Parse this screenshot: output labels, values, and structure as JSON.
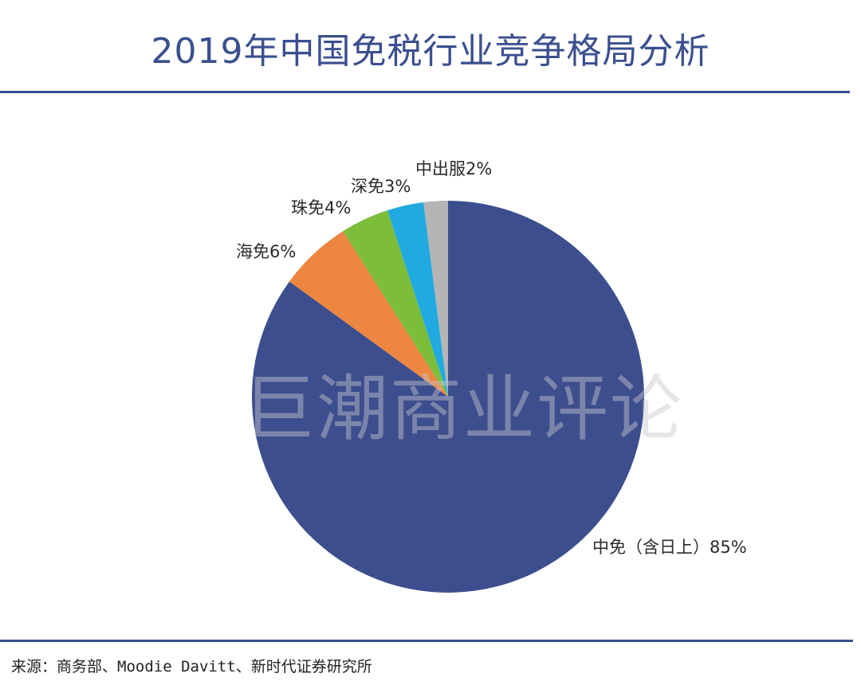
{
  "title": "2019年中国免税行业竞争格局分析",
  "source": "来源：商务部、Moodie Davitt、新时代证券研究所",
  "watermark": "巨潮商业评论",
  "colors": {
    "accent": "#3b4f8f",
    "cdf": "#3d4e8e",
    "haimian": "#ec8641",
    "zhumian": "#7cbd3a",
    "shenmian": "#21aae1",
    "zhongchufu": "#b5b5b5"
  },
  "chart_data": {
    "type": "pie",
    "title": "2019年中国免税行业竞争格局分析",
    "start_angle": "12 o'clock, clockwise",
    "categories": [
      "中免（含日上）",
      "海免",
      "珠免",
      "深免",
      "中出服"
    ],
    "values": [
      85,
      6,
      4,
      3,
      2
    ],
    "unit": "%",
    "labels": [
      "中免（含日上）85%",
      "海免6%",
      "珠免4%",
      "深免3%",
      "中出服2%"
    ],
    "colors": [
      "#3d4e8e",
      "#ec8641",
      "#7cbd3a",
      "#21aae1",
      "#b5b5b5"
    ],
    "legend": "none (data labels outside slices)"
  },
  "labels": {
    "cdf": "中免（含日上）85%",
    "haimian": "海免6%",
    "zhumian": "珠免4%",
    "shenmian": "深免3%",
    "zhongchufu": "中出服2%"
  }
}
